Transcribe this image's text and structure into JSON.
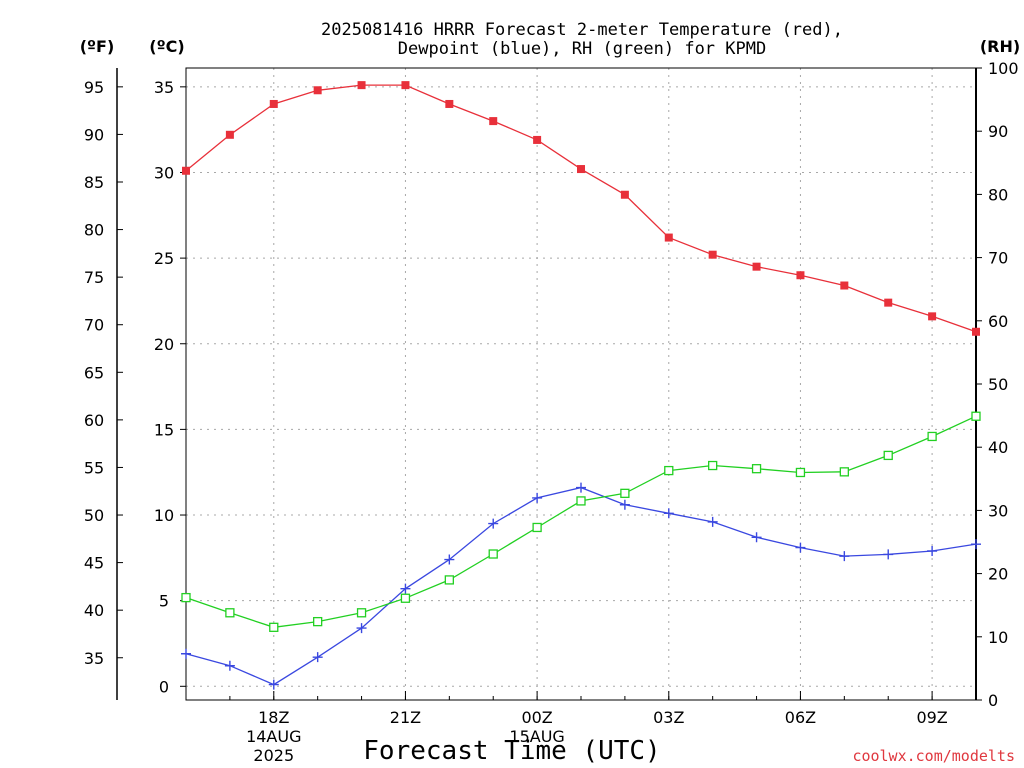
{
  "chart_data": {
    "type": "line",
    "title_line1": "2025081416 HRRR Forecast 2-meter Temperature (red),",
    "title_line2": "Dewpoint (blue), RH (green) for KPMD",
    "xlabel": "Forecast Time (UTC)",
    "credit": "coolwx.com/modelts",
    "units": {
      "fahrenheit": "(ºF)",
      "celsius": "(ºC)",
      "rh": "(RH)"
    },
    "x_hours": [
      16,
      17,
      18,
      19,
      20,
      21,
      22,
      23,
      24,
      25,
      26,
      27,
      28,
      29,
      30,
      31,
      32,
      33,
      34
    ],
    "xlim": [
      16,
      34
    ],
    "x_ticks": [
      {
        "hour": 18,
        "label": "18Z",
        "date": "14AUG",
        "year": "2025"
      },
      {
        "hour": 21,
        "label": "21Z"
      },
      {
        "hour": 24,
        "label": "00Z",
        "date": "15AUG"
      },
      {
        "hour": 27,
        "label": "03Z"
      },
      {
        "hour": 30,
        "label": "06Z"
      },
      {
        "hour": 33,
        "label": "09Z"
      }
    ],
    "celsius_axis": {
      "ylim": [
        -0.8,
        36.1
      ],
      "ticks": [
        0,
        5,
        10,
        15,
        20,
        25,
        30,
        35
      ]
    },
    "fahrenheit_axis": {
      "ticks": [
        35,
        40,
        45,
        50,
        55,
        60,
        65,
        70,
        75,
        80,
        85,
        90,
        95
      ]
    },
    "rh_axis": {
      "ylim": [
        0,
        100
      ],
      "ticks": [
        0,
        10,
        20,
        30,
        40,
        50,
        60,
        70,
        80,
        90,
        100
      ]
    },
    "series": [
      {
        "key": "temperature",
        "color": "#e8303a",
        "marker": "filled-square",
        "axis": "celsius",
        "values": [
          30.1,
          32.2,
          34.0,
          34.8,
          35.1,
          35.1,
          34.0,
          33.0,
          31.9,
          30.2,
          28.7,
          26.2,
          25.2,
          24.5,
          24.0,
          23.4,
          22.4,
          21.6,
          20.7
        ]
      },
      {
        "key": "dewpoint",
        "color": "#3a48e0",
        "marker": "plus",
        "axis": "celsius",
        "values": [
          1.9,
          1.2,
          0.1,
          1.7,
          3.4,
          5.7,
          7.4,
          9.5,
          11.0,
          11.6,
          10.6,
          10.1,
          9.6,
          8.7,
          8.1,
          7.6,
          7.7,
          7.9,
          8.3
        ]
      },
      {
        "key": "rh",
        "color": "#22d022",
        "marker": "open-square",
        "axis": "rh",
        "values": [
          16.2,
          13.8,
          11.5,
          12.4,
          13.8,
          16.1,
          19.0,
          23.1,
          27.3,
          31.5,
          32.7,
          36.3,
          37.1,
          36.6,
          36.0,
          36.1,
          38.7,
          41.7,
          44.9
        ]
      }
    ]
  }
}
